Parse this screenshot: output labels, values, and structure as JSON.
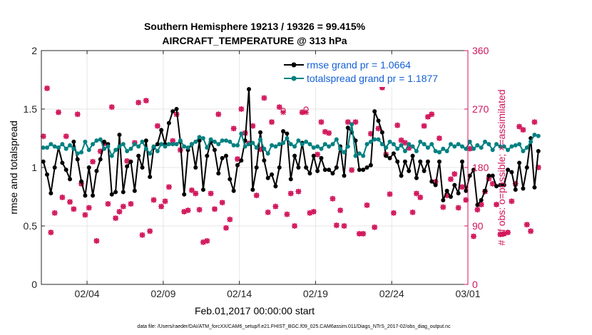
{
  "chart_data": {
    "type": "line",
    "title_line1": "Southern Hemisphere 19213 / 19326 = 99.415%",
    "title_line2": "AIRCRAFT_TEMPERATURE @ 313 hPa",
    "xlabel": "Feb.01,2017 00:00:00 start",
    "ylabel_left": "rmse and totalspread",
    "ylabel_right": "# of obs: o=possible; ×=assimilated",
    "footnote": "data file: /Users/raeder/DAI/ATM_forcXX/CAM6_setup/f.e21.FHIST_BGC.f09_025.CAM6assim.011/Diags_NTrS_2017-02/obs_diag_output.nc",
    "xlim": [
      0,
      28
    ],
    "ylim_left": [
      0,
      2
    ],
    "ylim_right": [
      0,
      360
    ],
    "x_ticks": [
      {
        "x": 3,
        "label": "02/04"
      },
      {
        "x": 8,
        "label": "02/09"
      },
      {
        "x": 13,
        "label": "02/14"
      },
      {
        "x": 18,
        "label": "02/19"
      },
      {
        "x": 23,
        "label": "02/24"
      },
      {
        "x": 28,
        "label": "03/01"
      }
    ],
    "y_ticks_left": [
      {
        "v": 0,
        "label": "0"
      },
      {
        "v": 0.5,
        "label": "0.5"
      },
      {
        "v": 1,
        "label": "1"
      },
      {
        "v": 1.5,
        "label": "1.5"
      },
      {
        "v": 2,
        "label": "2"
      }
    ],
    "y_ticks_right": [
      {
        "v": 0,
        "label": "0"
      },
      {
        "v": 90,
        "label": "90"
      },
      {
        "v": 180,
        "label": "180"
      },
      {
        "v": 270,
        "label": "270"
      },
      {
        "v": 360,
        "label": "360"
      }
    ],
    "legend_location": "top-right",
    "colors": {
      "rmse": "#000000",
      "spread": "#008080",
      "obs": "#d1145a"
    },
    "series": [
      {
        "name": "rmse grand pr = 1.0664",
        "x_start": 0.125,
        "x_step": 0.25,
        "values": [
          1.05,
          0.94,
          0.78,
          1.0,
          1.17,
          1.04,
          0.98,
          0.9,
          1.22,
          1.07,
          0.88,
          0.76,
          1.0,
          0.76,
          0.97,
          1.07,
          1.22,
          1.2,
          0.77,
          0.79,
          1.28,
          0.79,
          1.01,
          1.05,
          0.8,
          1.1,
          1.0,
          1.23,
          0.92,
          1.17,
          1.2,
          1.32,
          1.2,
          1.38,
          1.48,
          1.5,
          1.22,
          0.77,
          1.15,
          1.2,
          1.0,
          1.23,
          0.81,
          1.1,
          1.22,
          1.15,
          0.95,
          1.08,
          1.1,
          0.9,
          0.8,
          1.02,
          1.06,
          1.23,
          1.67,
          0.81,
          1.0,
          1.3,
          1.06,
          0.91,
          0.94,
          0.84,
          1.0,
          1.31,
          1.29,
          0.9,
          1.1,
          1.0,
          1.21,
          1.0,
          0.95,
          1.1,
          0.97,
          1.08,
          0.98,
          0.98,
          0.95,
          1.0,
          1.18,
          0.93,
          1.34,
          1.3,
          1.23,
          0.98,
          0.98,
          1.0,
          1.02,
          1.48,
          1.4,
          1.3,
          1.1,
          1.08,
          1.12,
          1.05,
          0.93,
          1.05,
          0.97,
          1.1,
          0.91,
          1.05,
          0.97,
          1.05,
          0.88,
          0.85,
          1.05,
          0.72,
          0.8,
          0.75,
          0.85,
          0.78,
          1.05,
          0.8,
          0.93,
          0.98,
          0.68,
          0.72,
          0.8,
          0.93,
          0.93,
          0.84,
          0.85,
          0.85,
          0.98,
          0.96,
          0.81,
          1.04,
          0.82,
          1.0,
          1.25,
          0.83,
          1.14
        ],
        "style": "line-marker"
      },
      {
        "name": "totalspread grand pr = 1.1877",
        "x_start": 0.125,
        "x_step": 0.25,
        "values": [
          1.17,
          1.17,
          1.2,
          1.18,
          1.17,
          1.2,
          1.16,
          1.19,
          1.16,
          1.12,
          1.13,
          1.22,
          1.15,
          1.2,
          1.23,
          1.24,
          1.16,
          1.18,
          1.1,
          1.15,
          1.18,
          1.2,
          1.14,
          1.16,
          1.2,
          1.18,
          1.22,
          1.16,
          1.12,
          1.18,
          1.14,
          1.2,
          1.18,
          1.2,
          1.2,
          1.2,
          1.23,
          1.18,
          1.17,
          1.2,
          1.22,
          1.26,
          1.25,
          1.17,
          1.24,
          1.22,
          1.2,
          1.23,
          1.23,
          1.22,
          1.19,
          1.19,
          1.29,
          1.18,
          1.2,
          1.21,
          1.17,
          1.24,
          1.16,
          1.12,
          1.19,
          1.18,
          1.2,
          1.21,
          1.25,
          1.2,
          1.18,
          1.23,
          1.2,
          1.22,
          1.2,
          1.17,
          1.18,
          1.16,
          1.2,
          1.18,
          1.2,
          1.24,
          1.16,
          1.13,
          1.18,
          1.37,
          1.1,
          1.12,
          1.1,
          1.2,
          1.22,
          1.24,
          1.24,
          1.2,
          1.17,
          1.22,
          1.2,
          1.16,
          1.19,
          1.14,
          1.2,
          1.18,
          1.14,
          1.22,
          1.2,
          1.17,
          1.2,
          1.14,
          1.13,
          1.16,
          1.14,
          1.2,
          1.18,
          1.2,
          1.18,
          1.16,
          1.22,
          1.16,
          1.19,
          1.17,
          1.22,
          1.2,
          1.15,
          1.2,
          1.18,
          1.18,
          1.15,
          1.18,
          1.19,
          1.2,
          1.14,
          1.17,
          1.22,
          1.28,
          1.27
        ],
        "style": "line-marker"
      }
    ],
    "obs_counts": {
      "x_start": 0.125,
      "x_step": 0.25,
      "possible": [
        228,
        302,
        80,
        110,
        265,
        134,
        228,
        127,
        116,
        262,
        155,
        107,
        118,
        189,
        67,
        205,
        217,
        124,
        273,
        102,
        112,
        120,
        190,
        124,
        218,
        280,
        76,
        283,
        82,
        130,
        244,
        120,
        128,
        150,
        221,
        262,
        207,
        112,
        114,
        145,
        140,
        115,
        65,
        67,
        140,
        116,
        262,
        126,
        87,
        100,
        240,
        193,
        270,
        233,
        217,
        244,
        137,
        208,
        287,
        111,
        250,
        120,
        273,
        268,
        108,
        140,
        90,
        143,
        265,
        270,
        110,
        112,
        200,
        250,
        235,
        233,
        132,
        91,
        114,
        90,
        250,
        176,
        250,
        78,
        78,
        122,
        232,
        88,
        240,
        303,
        200,
        139,
        110,
        245,
        222,
        218,
        210,
        111,
        140,
        134,
        244,
        258,
        262,
        158,
        225,
        119,
        137,
        162,
        170,
        118,
        150,
        130,
        209,
        74,
        115,
        123,
        143,
        163,
        155,
        123,
        77,
        78,
        80,
        128,
        155,
        243,
        238,
        92,
        82,
        250,
        180
      ],
      "assimilated": [
        228,
        302,
        80,
        110,
        265,
        134,
        228,
        127,
        116,
        262,
        155,
        107,
        118,
        189,
        67,
        205,
        217,
        124,
        273,
        102,
        112,
        120,
        190,
        124,
        218,
        280,
        76,
        283,
        82,
        130,
        244,
        120,
        128,
        150,
        221,
        262,
        207,
        112,
        114,
        145,
        140,
        115,
        65,
        67,
        140,
        116,
        262,
        126,
        87,
        100,
        240,
        193,
        270,
        233,
        217,
        244,
        137,
        208,
        287,
        111,
        250,
        120,
        273,
        265,
        108,
        140,
        90,
        143,
        265,
        265,
        110,
        112,
        200,
        250,
        235,
        233,
        132,
        91,
        114,
        90,
        250,
        176,
        250,
        78,
        78,
        122,
        232,
        88,
        240,
        303,
        200,
        139,
        110,
        245,
        222,
        218,
        210,
        111,
        140,
        134,
        244,
        258,
        262,
        158,
        225,
        119,
        137,
        162,
        170,
        118,
        150,
        130,
        209,
        74,
        115,
        123,
        143,
        163,
        155,
        123,
        77,
        78,
        80,
        128,
        155,
        243,
        238,
        92,
        82,
        250,
        180
      ]
    }
  }
}
